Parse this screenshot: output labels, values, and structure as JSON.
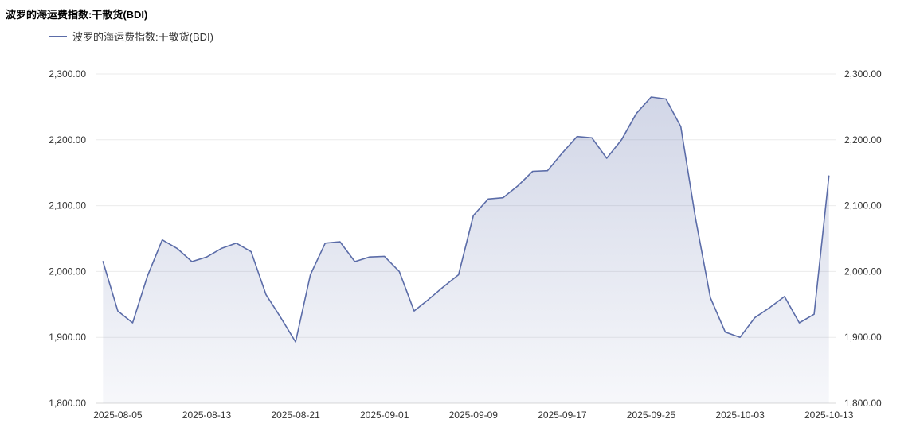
{
  "title": "波罗的海运费指数:干散货(BDI)",
  "legend": {
    "label": "波罗的海运费指数:干散货(BDI)"
  },
  "chart_data": {
    "type": "area",
    "title": "波罗的海运费指数:干散货(BDI)",
    "legend_position": "top-left",
    "grid": true,
    "ylim": [
      1800,
      2300
    ],
    "y_ticks": [
      1800,
      1900,
      2000,
      2100,
      2200,
      2300
    ],
    "y_tick_labels": [
      "1,800.00",
      "1,900.00",
      "2,000.00",
      "2,100.00",
      "2,200.00",
      "2,300.00"
    ],
    "x_tick_labels": [
      "2025-08-05",
      "2025-08-13",
      "2025-08-21",
      "2025-09-01",
      "2025-09-09",
      "2025-09-17",
      "2025-09-25",
      "2025-10-03",
      "2025-10-13"
    ],
    "x_tick_indices": [
      1,
      7,
      13,
      19,
      25,
      31,
      37,
      43,
      49
    ],
    "series": [
      {
        "name": "波罗的海运费指数:干散货(BDI)",
        "dates": [
          "2025-08-04",
          "2025-08-05",
          "2025-08-06",
          "2025-08-07",
          "2025-08-08",
          "2025-08-11",
          "2025-08-12",
          "2025-08-13",
          "2025-08-14",
          "2025-08-15",
          "2025-08-18",
          "2025-08-19",
          "2025-08-20",
          "2025-08-21",
          "2025-08-22",
          "2025-08-26",
          "2025-08-27",
          "2025-08-28",
          "2025-08-29",
          "2025-09-01",
          "2025-09-02",
          "2025-09-03",
          "2025-09-04",
          "2025-09-05",
          "2025-09-08",
          "2025-09-09",
          "2025-09-10",
          "2025-09-11",
          "2025-09-12",
          "2025-09-15",
          "2025-09-16",
          "2025-09-17",
          "2025-09-18",
          "2025-09-19",
          "2025-09-22",
          "2025-09-23",
          "2025-09-24",
          "2025-09-25",
          "2025-09-26",
          "2025-09-29",
          "2025-09-30",
          "2025-10-01",
          "2025-10-02",
          "2025-10-03",
          "2025-10-06",
          "2025-10-07",
          "2025-10-08",
          "2025-10-09",
          "2025-10-10",
          "2025-10-13"
        ],
        "values": [
          2015,
          1940,
          1922,
          1993,
          2048,
          2035,
          2015,
          2022,
          2035,
          2043,
          2030,
          1965,
          1930,
          1893,
          1995,
          2043,
          2045,
          2015,
          2022,
          2023,
          2000,
          1940,
          1958,
          1977,
          1995,
          2085,
          2110,
          2112,
          2130,
          2152,
          2153,
          2180,
          2205,
          2203,
          2172,
          2200,
          2240,
          2265,
          2262,
          2220,
          2080,
          1960,
          1908,
          1900,
          1930,
          1945,
          1962,
          1922,
          1935,
          2145
        ]
      }
    ],
    "colors": {
      "line": "#5B6CA8",
      "area_top": "rgba(91,108,168,0.28)",
      "area_bottom": "rgba(91,108,168,0.05)",
      "grid": "#ebebeb",
      "axis_line": "#d8d8d8",
      "axis_text": "#333333",
      "title_text": "#000000"
    }
  }
}
